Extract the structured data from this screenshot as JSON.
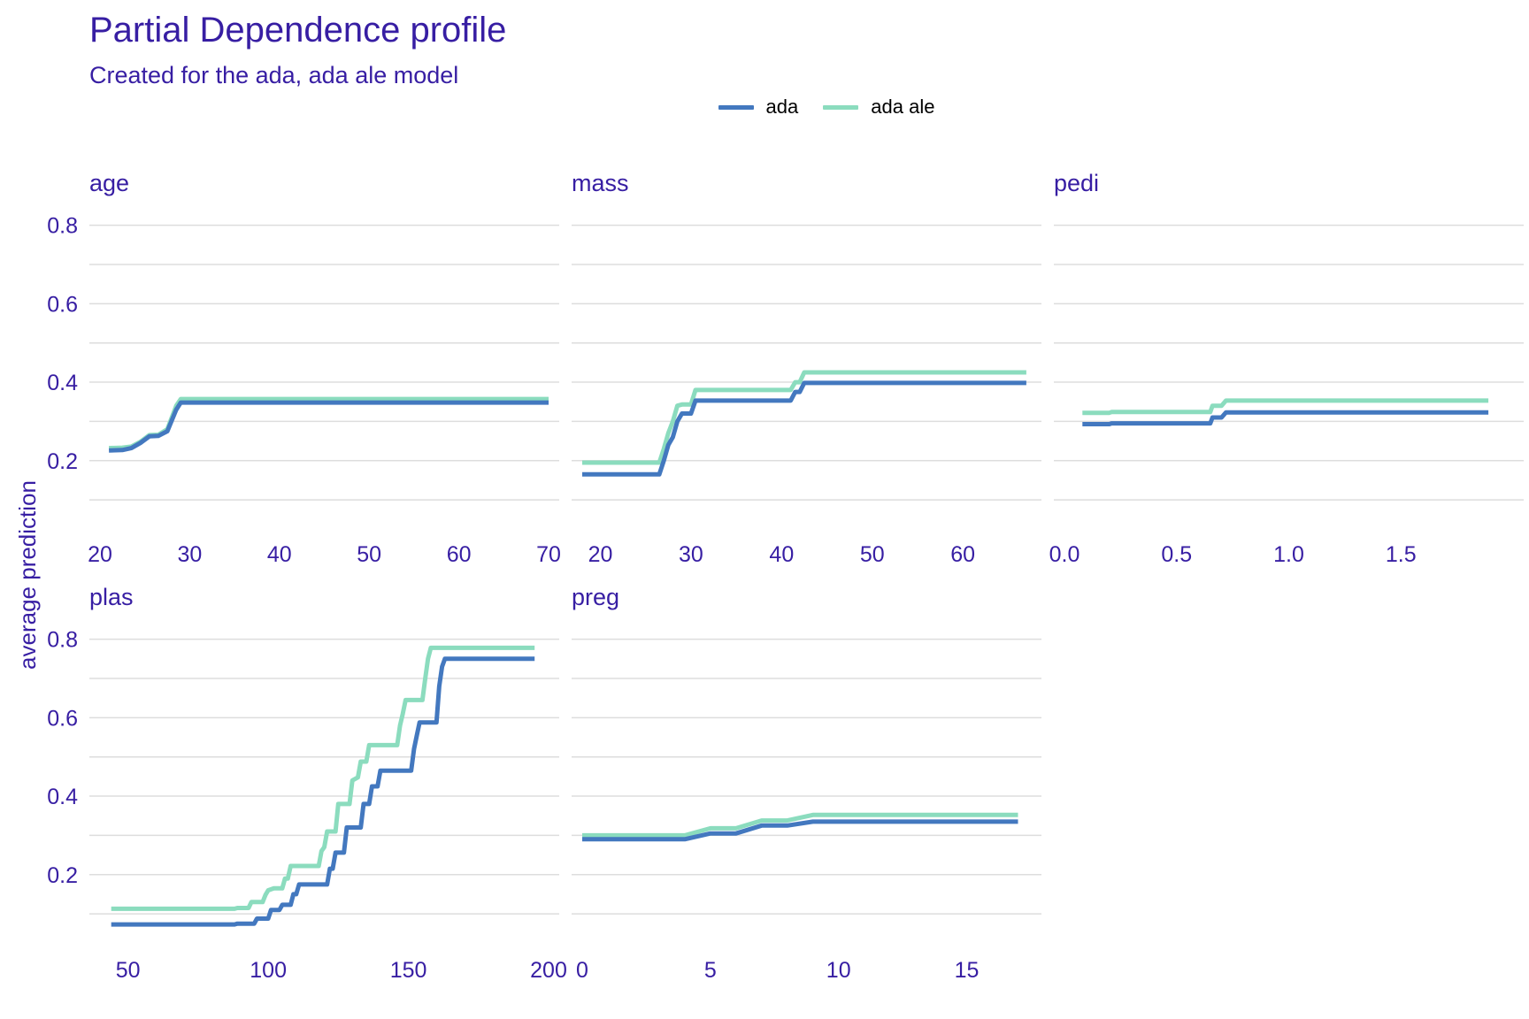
{
  "title": "Partial Dependence profile",
  "subtitle": "Created for the ada, ada ale model",
  "colors": {
    "ada": "#4378bf",
    "ada ale": "#8bdcbe",
    "text": "#371ea3",
    "grid": "#dddddd"
  },
  "chart_data": {
    "type": "line",
    "ylabel": "average prediction",
    "ylim": [
      0.08,
      0.86
    ],
    "yticks": [
      0.2,
      0.4,
      0.6,
      0.8
    ],
    "grid": true,
    "legend_position": "top",
    "series_names": [
      "ada",
      "ada ale"
    ],
    "panels": [
      {
        "variable": "age",
        "xlim": [
          20,
          70
        ],
        "xticks": [
          20,
          30,
          40,
          50,
          60,
          70
        ],
        "series": [
          {
            "name": "ada",
            "points": [
              [
                21,
                0.226
              ],
              [
                22.5,
                0.227
              ],
              [
                23.5,
                0.232
              ],
              [
                24.5,
                0.245
              ],
              [
                25.5,
                0.262
              ],
              [
                26.5,
                0.263
              ],
              [
                27.5,
                0.275
              ],
              [
                28.5,
                0.33
              ],
              [
                29,
                0.348
              ],
              [
                35,
                0.348
              ],
              [
                50,
                0.348
              ],
              [
                70,
                0.348
              ]
            ]
          },
          {
            "name": "ada ale",
            "points": [
              [
                21,
                0.232
              ],
              [
                22.5,
                0.233
              ],
              [
                23.5,
                0.236
              ],
              [
                24.5,
                0.248
              ],
              [
                25.5,
                0.265
              ],
              [
                26.5,
                0.266
              ],
              [
                27.5,
                0.28
              ],
              [
                28.5,
                0.34
              ],
              [
                29,
                0.357
              ],
              [
                35,
                0.357
              ],
              [
                50,
                0.357
              ],
              [
                70,
                0.357
              ]
            ]
          }
        ]
      },
      {
        "variable": "mass",
        "xlim": [
          18,
          67.5
        ],
        "xticks": [
          20,
          30,
          40,
          50,
          60
        ],
        "series": [
          {
            "name": "ada",
            "points": [
              [
                18,
                0.165
              ],
              [
                26.5,
                0.165
              ],
              [
                27,
                0.2
              ],
              [
                27.5,
                0.24
              ],
              [
                28,
                0.26
              ],
              [
                28.5,
                0.3
              ],
              [
                29,
                0.32
              ],
              [
                30,
                0.32
              ],
              [
                30.5,
                0.353
              ],
              [
                35,
                0.353
              ],
              [
                41,
                0.353
              ],
              [
                41.5,
                0.375
              ],
              [
                42,
                0.375
              ],
              [
                42.5,
                0.398
              ],
              [
                50,
                0.398
              ],
              [
                67,
                0.398
              ]
            ]
          },
          {
            "name": "ada ale",
            "points": [
              [
                18,
                0.195
              ],
              [
                26.5,
                0.195
              ],
              [
                27,
                0.23
              ],
              [
                27.5,
                0.27
              ],
              [
                28,
                0.3
              ],
              [
                28.5,
                0.34
              ],
              [
                29,
                0.343
              ],
              [
                30,
                0.343
              ],
              [
                30.5,
                0.38
              ],
              [
                35,
                0.38
              ],
              [
                41,
                0.38
              ],
              [
                41.5,
                0.4
              ],
              [
                42,
                0.4
              ],
              [
                42.5,
                0.425
              ],
              [
                50,
                0.425
              ],
              [
                67,
                0.425
              ]
            ]
          }
        ]
      },
      {
        "variable": "pedi",
        "xlim": [
          0,
          2.0
        ],
        "xticks": [
          0.0,
          0.5,
          1.0,
          1.5
        ],
        "tick_labels": [
          "0.0",
          "0.5",
          "1.0",
          "1.5"
        ],
        "series": [
          {
            "name": "ada",
            "points": [
              [
                0.08,
                0.293
              ],
              [
                0.2,
                0.293
              ],
              [
                0.21,
                0.295
              ],
              [
                0.4,
                0.295
              ],
              [
                0.65,
                0.295
              ],
              [
                0.66,
                0.31
              ],
              [
                0.7,
                0.31
              ],
              [
                0.72,
                0.323
              ],
              [
                1.0,
                0.323
              ],
              [
                1.89,
                0.323
              ]
            ]
          },
          {
            "name": "ada ale",
            "points": [
              [
                0.08,
                0.322
              ],
              [
                0.2,
                0.322
              ],
              [
                0.21,
                0.324
              ],
              [
                0.4,
                0.324
              ],
              [
                0.65,
                0.324
              ],
              [
                0.66,
                0.34
              ],
              [
                0.7,
                0.34
              ],
              [
                0.72,
                0.353
              ],
              [
                1.0,
                0.353
              ],
              [
                1.89,
                0.353
              ]
            ]
          }
        ]
      },
      {
        "variable": "plas",
        "xlim": [
          40,
          200
        ],
        "xticks": [
          50,
          100,
          150,
          200
        ],
        "series": [
          {
            "name": "ada",
            "points": [
              [
                44,
                0.073
              ],
              [
                88,
                0.073
              ],
              [
                89,
                0.075
              ],
              [
                95,
                0.075
              ],
              [
                96,
                0.088
              ],
              [
                100,
                0.088
              ],
              [
                101,
                0.11
              ],
              [
                104,
                0.11
              ],
              [
                105,
                0.123
              ],
              [
                108,
                0.123
              ],
              [
                109,
                0.15
              ],
              [
                110,
                0.15
              ],
              [
                111,
                0.175
              ],
              [
                121,
                0.175
              ],
              [
                122,
                0.215
              ],
              [
                123,
                0.215
              ],
              [
                124,
                0.256
              ],
              [
                127,
                0.256
              ],
              [
                128,
                0.32
              ],
              [
                133,
                0.32
              ],
              [
                134,
                0.38
              ],
              [
                136,
                0.38
              ],
              [
                137,
                0.425
              ],
              [
                139,
                0.425
              ],
              [
                140,
                0.465
              ],
              [
                151,
                0.465
              ],
              [
                152,
                0.52
              ],
              [
                153,
                0.555
              ],
              [
                154,
                0.588
              ],
              [
                160,
                0.588
              ],
              [
                161,
                0.68
              ],
              [
                162,
                0.73
              ],
              [
                163,
                0.75
              ],
              [
                175,
                0.75
              ],
              [
                195,
                0.75
              ]
            ]
          },
          {
            "name": "ada ale",
            "points": [
              [
                44,
                0.113
              ],
              [
                88,
                0.113
              ],
              [
                89,
                0.115
              ],
              [
                93,
                0.115
              ],
              [
                94,
                0.13
              ],
              [
                98,
                0.13
              ],
              [
                99,
                0.148
              ],
              [
                100,
                0.16
              ],
              [
                102,
                0.165
              ],
              [
                105,
                0.165
              ],
              [
                106,
                0.19
              ],
              [
                107,
                0.19
              ],
              [
                108,
                0.222
              ],
              [
                118,
                0.222
              ],
              [
                119,
                0.26
              ],
              [
                120,
                0.27
              ],
              [
                121,
                0.31
              ],
              [
                124,
                0.31
              ],
              [
                125,
                0.38
              ],
              [
                129,
                0.38
              ],
              [
                130,
                0.44
              ],
              [
                132,
                0.448
              ],
              [
                133,
                0.488
              ],
              [
                135,
                0.488
              ],
              [
                136,
                0.53
              ],
              [
                146,
                0.53
              ],
              [
                147,
                0.58
              ],
              [
                148,
                0.61
              ],
              [
                149,
                0.645
              ],
              [
                155,
                0.645
              ],
              [
                156,
                0.7
              ],
              [
                157,
                0.75
              ],
              [
                158,
                0.778
              ],
              [
                175,
                0.778
              ],
              [
                195,
                0.778
              ]
            ]
          }
        ]
      },
      {
        "variable": "preg",
        "xlim": [
          0,
          17.5
        ],
        "xticks": [
          0,
          5,
          10,
          15
        ],
        "series": [
          {
            "name": "ada",
            "points": [
              [
                0,
                0.29
              ],
              [
                4,
                0.29
              ],
              [
                5,
                0.305
              ],
              [
                6,
                0.305
              ],
              [
                7,
                0.325
              ],
              [
                8,
                0.325
              ],
              [
                9,
                0.335
              ],
              [
                12,
                0.335
              ],
              [
                17,
                0.335
              ]
            ]
          },
          {
            "name": "ada ale",
            "points": [
              [
                0,
                0.3
              ],
              [
                4,
                0.3
              ],
              [
                5,
                0.318
              ],
              [
                6,
                0.318
              ],
              [
                7,
                0.338
              ],
              [
                8,
                0.338
              ],
              [
                9,
                0.352
              ],
              [
                12,
                0.352
              ],
              [
                17,
                0.352
              ]
            ]
          }
        ]
      }
    ]
  }
}
